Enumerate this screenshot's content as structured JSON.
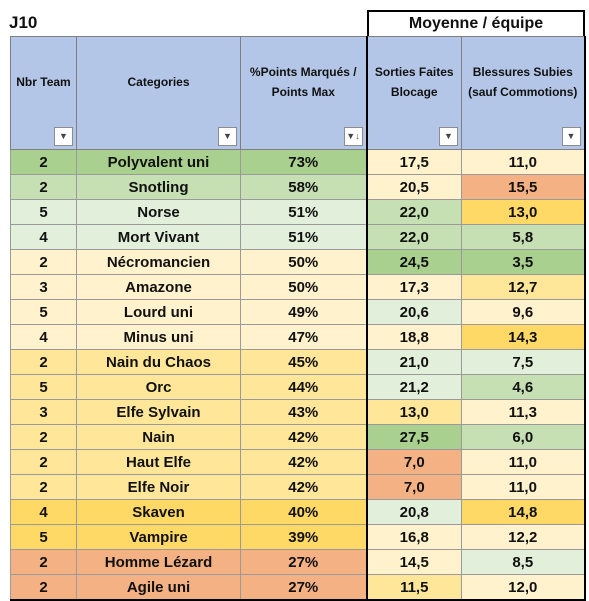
{
  "title": "J10",
  "group_header": "Moyenne / équipe",
  "columns": [
    {
      "label": "Nbr Team"
    },
    {
      "label": "Categories"
    },
    {
      "label": "%Points Marqués / Points Max"
    },
    {
      "label": "Sorties Faites Blocage"
    },
    {
      "label": "Blessures Subies (sauf Commotions)"
    }
  ],
  "rows": [
    {
      "nbr": "2",
      "category": "Polyvalent uni",
      "pct": "73%",
      "sorties": "17,5",
      "blessures": "11,0",
      "colors": [
        "#a9d08e",
        "#a9d08e",
        "#a9d08e",
        "#fff2cc",
        "#fff2cc"
      ]
    },
    {
      "nbr": "2",
      "category": "Snotling",
      "pct": "58%",
      "sorties": "20,5",
      "blessures": "15,5",
      "colors": [
        "#c6e0b4",
        "#c6e0b4",
        "#c6e0b4",
        "#fff2cc",
        "#f4b183"
      ]
    },
    {
      "nbr": "5",
      "category": "Norse",
      "pct": "51%",
      "sorties": "22,0",
      "blessures": "13,0",
      "colors": [
        "#e2efda",
        "#e2efda",
        "#e2efda",
        "#c6e0b4",
        "#ffd966"
      ]
    },
    {
      "nbr": "4",
      "category": "Mort Vivant",
      "pct": "51%",
      "sorties": "22,0",
      "blessures": "5,8",
      "colors": [
        "#e2efda",
        "#e2efda",
        "#e2efda",
        "#c6e0b4",
        "#c6e0b4"
      ]
    },
    {
      "nbr": "2",
      "category": "Nécromancien",
      "pct": "50%",
      "sorties": "24,5",
      "blessures": "3,5",
      "colors": [
        "#fff2cc",
        "#fff2cc",
        "#fff2cc",
        "#a9d08e",
        "#a9d08e"
      ]
    },
    {
      "nbr": "3",
      "category": "Amazone",
      "pct": "50%",
      "sorties": "17,3",
      "blessures": "12,7",
      "colors": [
        "#fff2cc",
        "#fff2cc",
        "#fff2cc",
        "#fff2cc",
        "#ffe699"
      ]
    },
    {
      "nbr": "5",
      "category": "Lourd uni",
      "pct": "49%",
      "sorties": "20,6",
      "blessures": "9,6",
      "colors": [
        "#fff2cc",
        "#fff2cc",
        "#fff2cc",
        "#e2efda",
        "#fff2cc"
      ]
    },
    {
      "nbr": "4",
      "category": "Minus uni",
      "pct": "47%",
      "sorties": "18,8",
      "blessures": "14,3",
      "colors": [
        "#fff2cc",
        "#fff2cc",
        "#fff2cc",
        "#fff2cc",
        "#ffd966"
      ]
    },
    {
      "nbr": "2",
      "category": "Nain du Chaos",
      "pct": "45%",
      "sorties": "21,0",
      "blessures": "7,5",
      "colors": [
        "#ffe699",
        "#ffe699",
        "#ffe699",
        "#e2efda",
        "#e2efda"
      ]
    },
    {
      "nbr": "5",
      "category": "Orc",
      "pct": "44%",
      "sorties": "21,2",
      "blessures": "4,6",
      "colors": [
        "#ffe699",
        "#ffe699",
        "#ffe699",
        "#e2efda",
        "#c6e0b4"
      ]
    },
    {
      "nbr": "3",
      "category": "Elfe Sylvain",
      "pct": "43%",
      "sorties": "13,0",
      "blessures": "11,3",
      "colors": [
        "#ffe699",
        "#ffe699",
        "#ffe699",
        "#ffe699",
        "#fff2cc"
      ]
    },
    {
      "nbr": "2",
      "category": "Nain",
      "pct": "42%",
      "sorties": "27,5",
      "blessures": "6,0",
      "colors": [
        "#ffe699",
        "#ffe699",
        "#ffe699",
        "#a9d08e",
        "#c6e0b4"
      ]
    },
    {
      "nbr": "2",
      "category": "Haut Elfe",
      "pct": "42%",
      "sorties": "7,0",
      "blessures": "11,0",
      "colors": [
        "#ffe699",
        "#ffe699",
        "#ffe699",
        "#f4b183",
        "#fff2cc"
      ]
    },
    {
      "nbr": "2",
      "category": "Elfe Noir",
      "pct": "42%",
      "sorties": "7,0",
      "blessures": "11,0",
      "colors": [
        "#ffe699",
        "#ffe699",
        "#ffe699",
        "#f4b183",
        "#fff2cc"
      ]
    },
    {
      "nbr": "4",
      "category": "Skaven",
      "pct": "40%",
      "sorties": "20,8",
      "blessures": "14,8",
      "colors": [
        "#ffd966",
        "#ffd966",
        "#ffd966",
        "#e2efda",
        "#ffd966"
      ]
    },
    {
      "nbr": "5",
      "category": "Vampire",
      "pct": "39%",
      "sorties": "16,8",
      "blessures": "12,2",
      "colors": [
        "#ffd966",
        "#ffd966",
        "#ffd966",
        "#fff2cc",
        "#fff2cc"
      ]
    },
    {
      "nbr": "2",
      "category": "Homme Lézard",
      "pct": "27%",
      "sorties": "14,5",
      "blessures": "8,5",
      "colors": [
        "#f4b183",
        "#f4b183",
        "#f4b183",
        "#fff2cc",
        "#e2efda"
      ]
    },
    {
      "nbr": "2",
      "category": "Agile uni",
      "pct": "27%",
      "sorties": "11,5",
      "blessures": "12,0",
      "colors": [
        "#f4b183",
        "#f4b183",
        "#f4b183",
        "#ffe699",
        "#fff2cc"
      ]
    }
  ]
}
